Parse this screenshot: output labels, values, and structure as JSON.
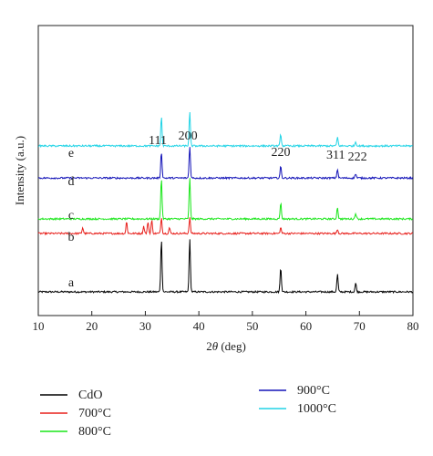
{
  "chart_data": {
    "type": "line",
    "xlabel_prefix": "2",
    "xlabel_theta": "θ",
    "xlabel_suffix": " (deg)",
    "ylabel": "Intensity (a.u.)",
    "xlim": [
      10,
      80
    ],
    "xticks": [
      "10",
      "20",
      "30",
      "40",
      "50",
      "60",
      "70",
      "80"
    ],
    "grid": false,
    "legend_position": "bottom",
    "peak_labels": [
      {
        "text": "111",
        "x": 33.0
      },
      {
        "text": "200",
        "x": 38.3
      },
      {
        "text": "220",
        "x": 55.3
      },
      {
        "text": "311",
        "x": 65.9
      },
      {
        "text": "222",
        "x": 69.3
      }
    ],
    "series": [
      {
        "label": "a",
        "legend": "CdO",
        "color": "#000000",
        "baseline": 0.0,
        "peaks": [
          {
            "x": 33.0,
            "h": 0.36
          },
          {
            "x": 38.3,
            "h": 0.36
          },
          {
            "x": 55.3,
            "h": 0.17
          },
          {
            "x": 65.9,
            "h": 0.12
          },
          {
            "x": 69.3,
            "h": 0.06
          }
        ]
      },
      {
        "label": "b",
        "legend": "700°C",
        "color": "#e8201c",
        "baseline": 0.4,
        "peaks": [
          {
            "x": 18.3,
            "h": 0.04
          },
          {
            "x": 26.5,
            "h": 0.08
          },
          {
            "x": 29.7,
            "h": 0.05
          },
          {
            "x": 30.5,
            "h": 0.08
          },
          {
            "x": 31.2,
            "h": 0.09
          },
          {
            "x": 33.0,
            "h": 0.11
          },
          {
            "x": 34.5,
            "h": 0.04
          },
          {
            "x": 38.3,
            "h": 0.11
          },
          {
            "x": 55.3,
            "h": 0.04
          },
          {
            "x": 65.9,
            "h": 0.03
          }
        ]
      },
      {
        "label": "c",
        "legend": "800°C",
        "color": "#19e619",
        "baseline": 0.5,
        "peaks": [
          {
            "x": 33.0,
            "h": 0.28
          },
          {
            "x": 38.3,
            "h": 0.28
          },
          {
            "x": 55.3,
            "h": 0.11
          },
          {
            "x": 65.9,
            "h": 0.08
          },
          {
            "x": 69.3,
            "h": 0.04
          }
        ]
      },
      {
        "label": "d",
        "legend": "900°C",
        "color": "#1414b8",
        "baseline": 0.78,
        "peaks": [
          {
            "x": 33.0,
            "h": 0.18
          },
          {
            "x": 38.3,
            "h": 0.22
          },
          {
            "x": 55.3,
            "h": 0.08
          },
          {
            "x": 65.9,
            "h": 0.06
          },
          {
            "x": 69.3,
            "h": 0.03
          }
        ]
      },
      {
        "label": "e",
        "legend": "1000°C",
        "color": "#22d4e6",
        "baseline": 1.0,
        "peaks": [
          {
            "x": 33.0,
            "h": 0.2
          },
          {
            "x": 38.3,
            "h": 0.23
          },
          {
            "x": 55.3,
            "h": 0.08
          },
          {
            "x": 65.9,
            "h": 0.06
          },
          {
            "x": 69.3,
            "h": 0.03
          }
        ]
      }
    ]
  }
}
